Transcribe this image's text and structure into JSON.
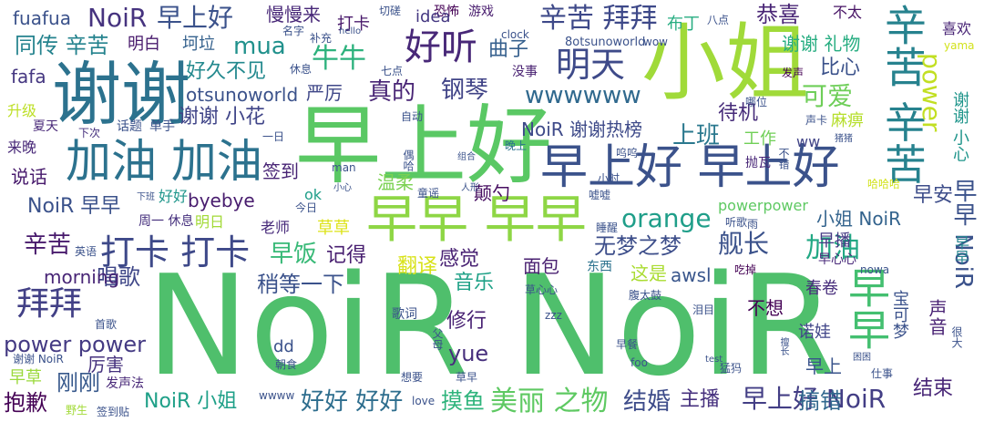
{
  "words": [
    {
      "text": "NoiR NoiR",
      "color": "#4fbf6c"
    },
    {
      "text": "早上好",
      "color": "#5ac864"
    },
    {
      "text": "小姐",
      "color": "#a0da39"
    },
    {
      "text": "谢谢",
      "color": "#2c728e"
    },
    {
      "text": "早早 早早",
      "color": "#8ed645"
    },
    {
      "text": "早上好 早上好",
      "color": "#3b528b"
    },
    {
      "text": "加油 加油",
      "color": "#2c728e"
    },
    {
      "text": "辛苦 辛苦",
      "color": "#26828e"
    },
    {
      "text": "早早",
      "color": "#44bf70"
    },
    {
      "text": "好听",
      "color": "#482878"
    },
    {
      "text": "明天",
      "color": "#3e4a89"
    },
    {
      "text": "打卡 打卡",
      "color": "#3e4989"
    },
    {
      "text": "拜拜",
      "color": "#424086"
    },
    {
      "text": "NoiR",
      "color": "#46337f"
    },
    {
      "text": "早上好",
      "color": "#3b528b"
    },
    {
      "text": "辛苦 拜拜",
      "color": "#3e4989"
    },
    {
      "text": "同传 辛苦",
      "color": "#25838e"
    },
    {
      "text": "mua",
      "color": "#21918c"
    },
    {
      "text": "牛牛",
      "color": "#2db27d"
    },
    {
      "text": "曲子",
      "color": "#355f8d"
    },
    {
      "text": "钢琴",
      "color": "#414487"
    },
    {
      "text": "真的",
      "color": "#482475"
    },
    {
      "text": "wwwwww",
      "color": "#30698e"
    },
    {
      "text": "可爱",
      "color": "#6ece58"
    },
    {
      "text": "power",
      "color": "#c2df23"
    },
    {
      "text": "上班",
      "color": "#2a788e"
    },
    {
      "text": "NoiR 谢谢热榜",
      "color": "#3e4a89"
    },
    {
      "text": "早上好 NoiR",
      "color": "#433e85"
    },
    {
      "text": "orange",
      "color": "#1f9e89"
    },
    {
      "text": "无梦之梦",
      "color": "#3d4e8a"
    },
    {
      "text": "舰长",
      "color": "#3b528b"
    },
    {
      "text": "恭喜",
      "color": "#482475"
    },
    {
      "text": "美丽 之物",
      "color": "#5ec962"
    },
    {
      "text": "好好 好好",
      "color": "#2e6e8e"
    },
    {
      "text": "结婚",
      "color": "#3e4c8a"
    },
    {
      "text": "搞错",
      "color": "#31688e"
    },
    {
      "text": "早早 NoiR",
      "color": "#3b528b"
    },
    {
      "text": "NoiR 小姐",
      "color": "#1fa088"
    },
    {
      "text": "抱歉",
      "color": "#440154"
    },
    {
      "text": "刚刚",
      "color": "#38598c"
    },
    {
      "text": "唱歌",
      "color": "#3f4788"
    },
    {
      "text": "power power",
      "color": "#443a83"
    },
    {
      "text": "加油",
      "color": "#22a884"
    },
    {
      "text": "早饭",
      "color": "#38b977"
    },
    {
      "text": "感觉",
      "color": "#482173"
    },
    {
      "text": "翻译",
      "color": "#d8e219"
    },
    {
      "text": "记得",
      "color": "#481f70"
    },
    {
      "text": "morning",
      "color": "#482576"
    },
    {
      "text": "稍等一下",
      "color": "#3b528b"
    },
    {
      "text": "音乐",
      "color": "#1fa187"
    },
    {
      "text": "摸鱼",
      "color": "#2fb47c"
    },
    {
      "text": "主播",
      "color": "#46307e"
    },
    {
      "text": "小姐 NoiR",
      "color": "#33638d"
    },
    {
      "text": "待机",
      "color": "#472c7a"
    },
    {
      "text": "谢谢 小花",
      "color": "#404588"
    },
    {
      "text": "好久不见",
      "color": "#23898e"
    },
    {
      "text": "otsunoworld",
      "color": "#3b528b"
    },
    {
      "text": "严厉",
      "color": "#3f4788"
    },
    {
      "text": "谢谢 礼物",
      "color": "#27ad81"
    },
    {
      "text": "比心",
      "color": "#3b528b"
    },
    {
      "text": "fuafua",
      "color": "#3b528b"
    },
    {
      "text": "fafa",
      "color": "#453781"
    },
    {
      "text": "NoiR 早早",
      "color": "#3b528b"
    },
    {
      "text": "辛苦",
      "color": "#481a6c"
    },
    {
      "text": "早安",
      "color": "#3d4d8a"
    },
    {
      "text": "签到",
      "color": "#482475"
    },
    {
      "text": "说话",
      "color": "#481b6d"
    },
    {
      "text": "byebye",
      "color": "#481c6e"
    },
    {
      "text": "yue",
      "color": "#472f7d"
    },
    {
      "text": "修行",
      "color": "#482173"
    },
    {
      "text": "温柔",
      "color": "#7ad151"
    },
    {
      "text": "颠勺",
      "color": "#470e61"
    },
    {
      "text": "面包",
      "color": "#481f70"
    },
    {
      "text": "这是",
      "color": "#aadc32"
    },
    {
      "text": "awsl",
      "color": "#39568c"
    },
    {
      "text": "不想",
      "color": "#440154"
    },
    {
      "text": "厉害",
      "color": "#46327e"
    },
    {
      "text": "早草",
      "color": "#9bd93c"
    },
    {
      "text": "草草",
      "color": "#dde318"
    },
    {
      "text": "工作",
      "color": "#70cf57"
    },
    {
      "text": "早播",
      "color": "#443983"
    },
    {
      "text": "早上",
      "color": "#3a548c"
    },
    {
      "text": "结束",
      "color": "#482677"
    },
    {
      "text": "诺娃",
      "color": "#404588"
    },
    {
      "text": "恐怖",
      "color": "#440154"
    },
    {
      "text": "打卡",
      "color": "#48186a"
    },
    {
      "text": "慢慢来",
      "color": "#482878"
    },
    {
      "text": "布丁",
      "color": "#27ad81"
    },
    {
      "text": "不太",
      "color": "#471365"
    },
    {
      "text": "喜欢",
      "color": "#482475"
    },
    {
      "text": "idea",
      "color": "#453882"
    },
    {
      "text": "明白",
      "color": "#481a6c"
    },
    {
      "text": "坷垃",
      "color": "#34618d"
    },
    {
      "text": "麻痹",
      "color": "#b5de2b"
    },
    {
      "text": "谢谢 小心",
      "color": "#1f958b"
    },
    {
      "text": "声音",
      "color": "#482173"
    },
    {
      "text": "宝可梦",
      "color": "#3b528b"
    },
    {
      "text": "春卷",
      "color": "#472d7b"
    },
    {
      "text": "吃掉",
      "color": "#440154"
    },
    {
      "text": "雨",
      "color": "#3b528b"
    },
    {
      "text": "英语",
      "color": "#3b528b"
    },
    {
      "text": "升级",
      "color": "#bddf26"
    },
    {
      "text": "来晚",
      "color": "#482878"
    },
    {
      "text": "ok",
      "color": "#1f9e89"
    },
    {
      "text": "老师",
      "color": "#472a7a"
    },
    {
      "text": "明日",
      "color": "#a2da37"
    },
    {
      "text": "周一 休息",
      "color": "#46307e"
    },
    {
      "text": "好好",
      "color": "#1f968b"
    },
    {
      "text": "powerpower",
      "color": "#5ec962"
    },
    {
      "text": "仕事",
      "color": "#3b528b"
    },
    {
      "text": "嘘嘘",
      "color": "#3b528b"
    },
    {
      "text": "东西",
      "color": "#2c728e"
    },
    {
      "text": "早心心",
      "color": "#482979"
    },
    {
      "text": "早早",
      "color": "#25848e"
    },
    {
      "text": "ww",
      "color": "#414487"
    },
    {
      "text": "哪位",
      "color": "#3b528b"
    },
    {
      "text": "发声",
      "color": "#440154"
    },
    {
      "text": "8otsunoworld",
      "color": "#3b528b"
    },
    {
      "text": "wow",
      "color": "#3b528b"
    },
    {
      "text": "八点",
      "color": "#3b528b"
    },
    {
      "text": "切磋",
      "color": "#3b528b"
    },
    {
      "text": "游戏",
      "color": "#481c6e"
    },
    {
      "text": "名字",
      "color": "#3b528b"
    },
    {
      "text": "补充",
      "color": "#3b528b"
    },
    {
      "text": "clock",
      "color": "#3b528b"
    },
    {
      "text": "没事",
      "color": "#482071"
    },
    {
      "text": "七点",
      "color": "#3b528b"
    },
    {
      "text": "yama",
      "color": "#d2e21b"
    },
    {
      "text": "休息",
      "color": "#3b528b"
    },
    {
      "text": "自动",
      "color": "#3b528b"
    },
    {
      "text": "夏天",
      "color": "#482878"
    },
    {
      "text": "话题",
      "color": "#3b528b"
    },
    {
      "text": "单手",
      "color": "#3b528b"
    },
    {
      "text": "下次",
      "color": "#46307e"
    },
    {
      "text": "一日",
      "color": "#3b528b"
    },
    {
      "text": "晚上",
      "color": "#2c728e"
    },
    {
      "text": "呜呜",
      "color": "#3b528b"
    },
    {
      "text": "偶哈",
      "color": "#3b528b"
    },
    {
      "text": "组合",
      "color": "#3b528b"
    },
    {
      "text": "童谣",
      "color": "#3b528b"
    },
    {
      "text": "人形",
      "color": "#3b528b"
    },
    {
      "text": "小时",
      "color": "#3b528b"
    },
    {
      "text": "抛瓦",
      "color": "#482677"
    },
    {
      "text": "不错",
      "color": "#3b528b"
    },
    {
      "text": "哈哈哈",
      "color": "#d2e21b"
    },
    {
      "text": "声卡",
      "color": "#3b528b"
    },
    {
      "text": "猪猪",
      "color": "#3b528b"
    },
    {
      "text": "今日",
      "color": "#3b528b"
    },
    {
      "text": "小心",
      "color": "#3b528b"
    },
    {
      "text": "下班",
      "color": "#3b528b"
    },
    {
      "text": "睡醒",
      "color": "#3b528b"
    },
    {
      "text": "听歌",
      "color": "#3b528b"
    },
    {
      "text": "nowa",
      "color": "#3b528b"
    },
    {
      "text": "腹太鼓",
      "color": "#3b528b"
    },
    {
      "text": "泪目",
      "color": "#3b528b"
    },
    {
      "text": "歌词",
      "color": "#3b528b"
    },
    {
      "text": "草心心",
      "color": "#3b528b"
    },
    {
      "text": "父母",
      "color": "#3b528b"
    },
    {
      "text": "早餐",
      "color": "#3b528b"
    },
    {
      "text": "猛犸",
      "color": "#3b528b"
    },
    {
      "text": "擅长",
      "color": "#3b528b"
    },
    {
      "text": "很大",
      "color": "#3b528b"
    },
    {
      "text": "困困",
      "color": "#3b528b"
    },
    {
      "text": "foo",
      "color": "#3b528b"
    },
    {
      "text": "test",
      "color": "#3b528b"
    },
    {
      "text": "man",
      "color": "#3b528b"
    },
    {
      "text": "首歌",
      "color": "#3b528b"
    },
    {
      "text": "发声法",
      "color": "#482878"
    },
    {
      "text": "谢谢 NoiR",
      "color": "#3b528b"
    },
    {
      "text": "野生",
      "color": "#a2da37"
    },
    {
      "text": "签到贴",
      "color": "#3b528b"
    },
    {
      "text": "想要",
      "color": "#3b528b"
    },
    {
      "text": "草早",
      "color": "#3b528b"
    },
    {
      "text": "朝食",
      "color": "#3b528b"
    },
    {
      "text": "love",
      "color": "#3b528b"
    },
    {
      "text": "dd",
      "color": "#3b528b"
    },
    {
      "text": "zzz",
      "color": "#3b528b"
    },
    {
      "text": "wwww",
      "color": "#3b528b"
    },
    {
      "text": "hello",
      "color": "#3b528b"
    }
  ]
}
